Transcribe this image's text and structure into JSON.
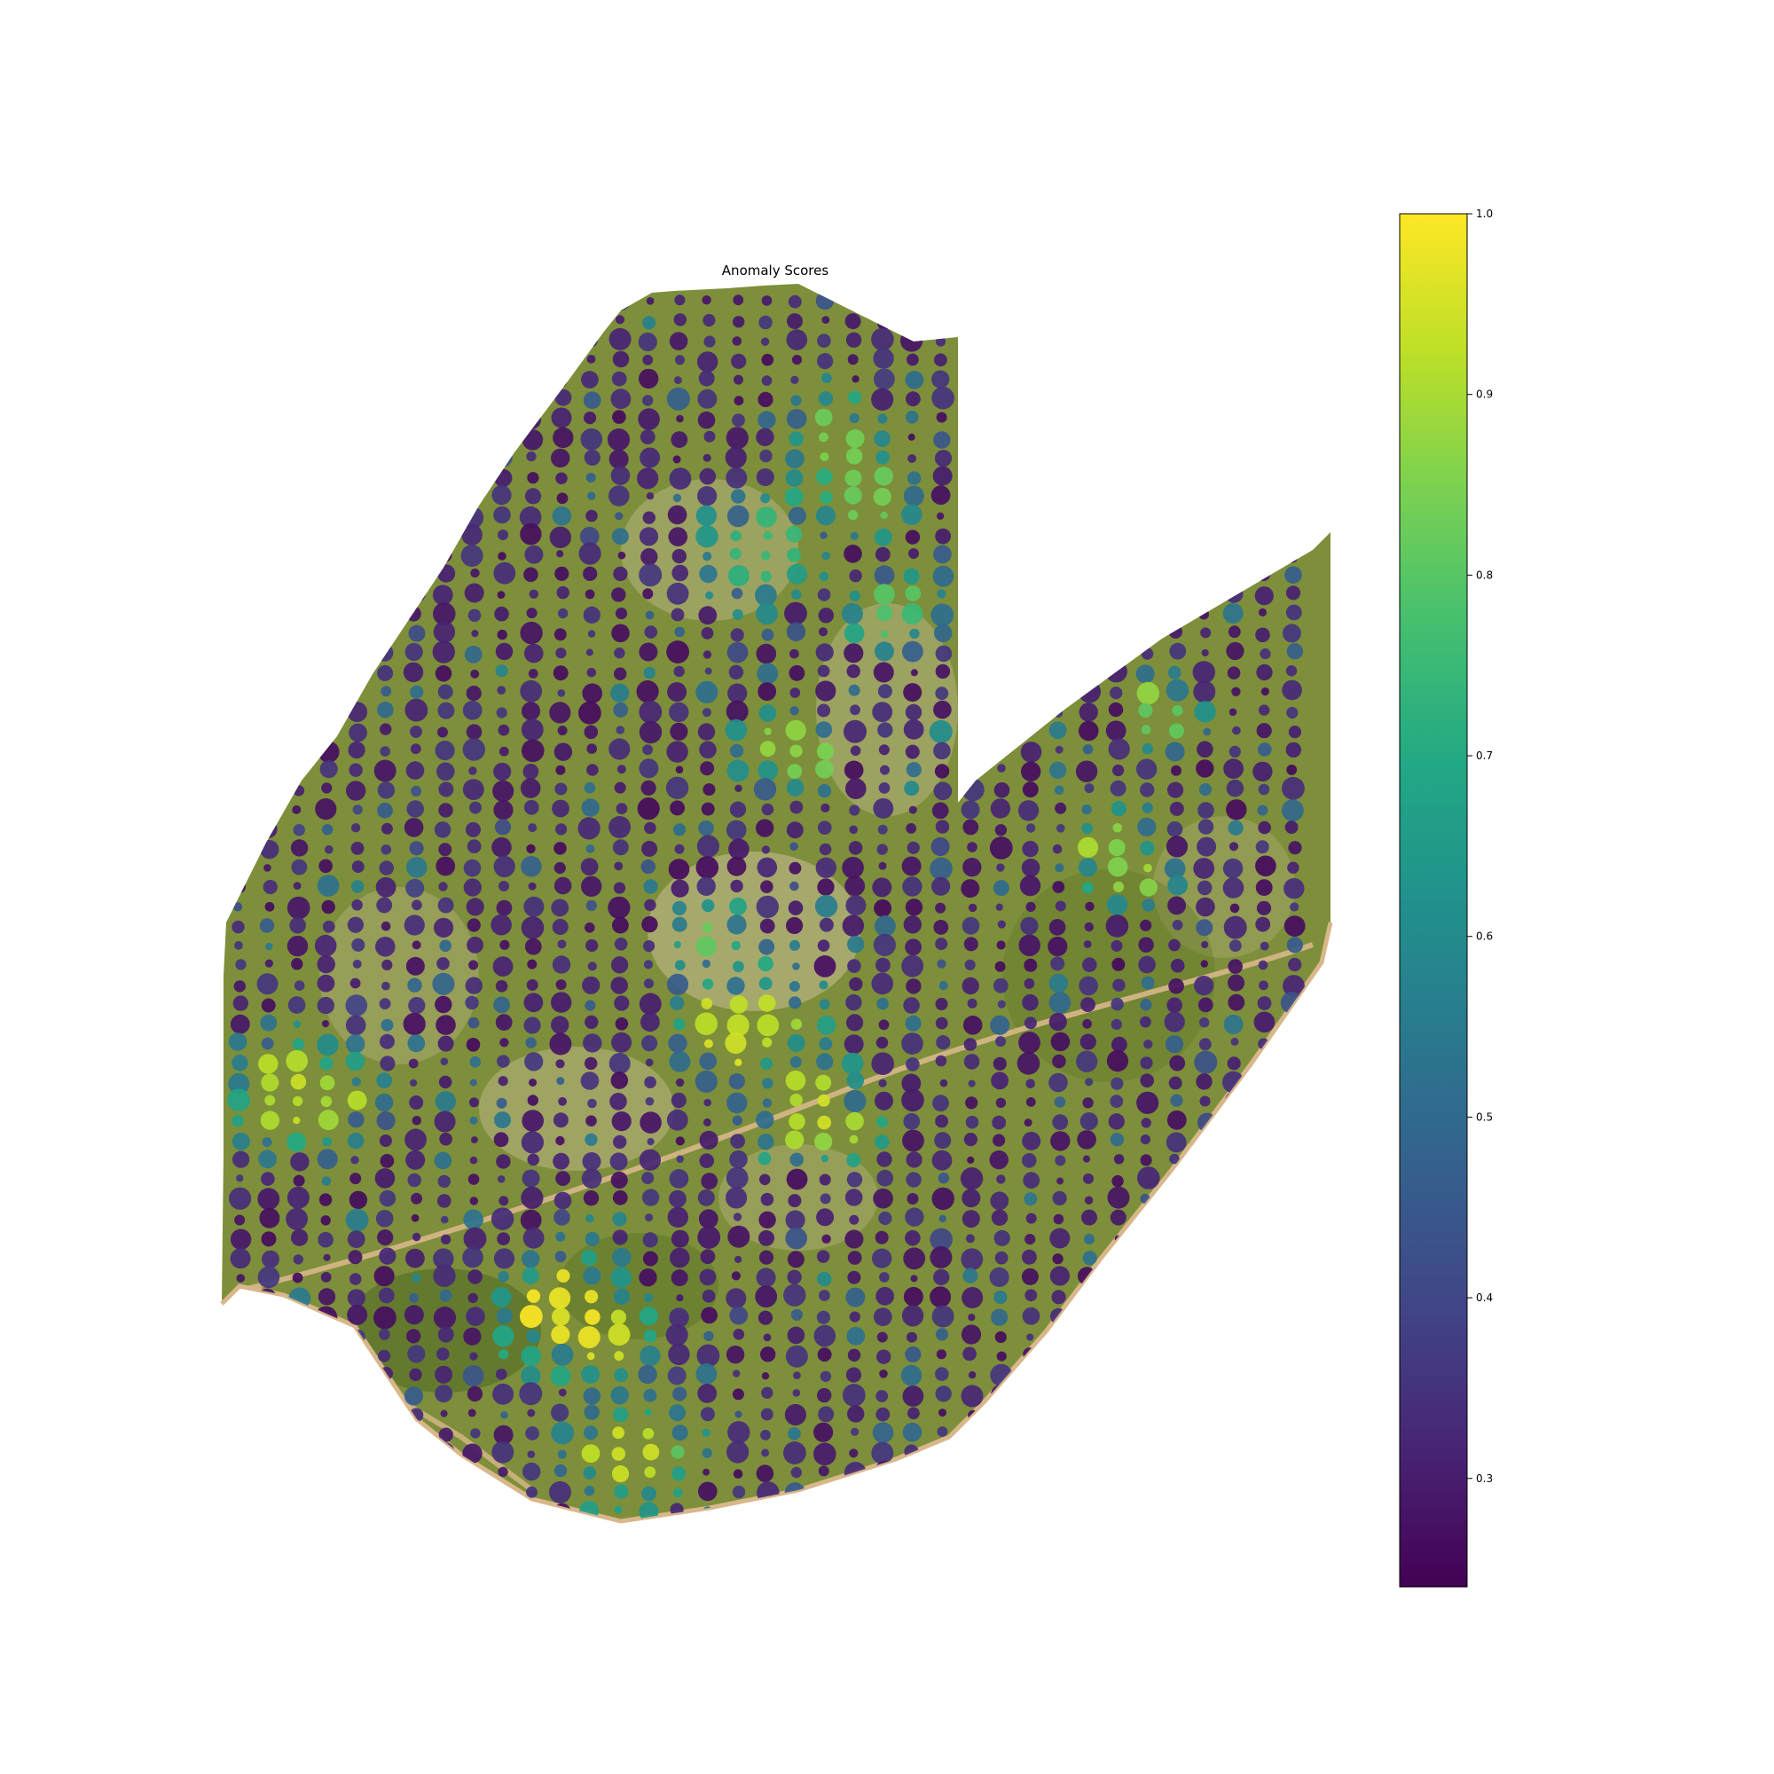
{
  "chart_data": {
    "type": "scatter",
    "title": "Anomaly Scores",
    "background": "aerial orthophoto of an orchard field with rows of tree crowns",
    "colormap": "viridis",
    "colorbar": {
      "vmin": 0.24,
      "vmax": 1.0,
      "ticks": [
        0.3,
        0.4,
        0.5,
        0.6,
        0.7,
        0.8,
        0.9,
        1.0
      ],
      "tick_labels": [
        "0.3",
        "0.4",
        "0.5",
        "0.6",
        "0.7",
        "0.8",
        "0.9",
        "1.0"
      ],
      "placement": "right"
    },
    "grid": false,
    "axes_visible": false,
    "note_on_values": "Each point is a tree crown colored by its anomaly score; most crowns score about 0.25–0.35, with high-scoring clusters (~0.8–1.0) scattered across the field."
  },
  "colors": {
    "viridis_low": "#440154",
    "viridis_mid": "#21918c",
    "viridis_high": "#fde725",
    "field_green": "#7d8f3a",
    "field_light": "#b6b27e",
    "road": "#d8b78a"
  }
}
